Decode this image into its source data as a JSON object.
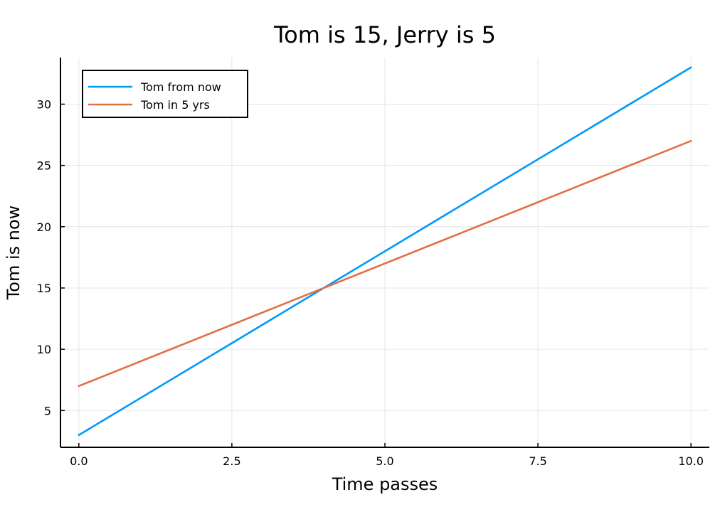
{
  "chart_data": {
    "type": "line",
    "title": "Tom is 15, Jerry is 5",
    "xlabel": "Time passes",
    "ylabel": "Tom is now",
    "xlim": [
      -0.3,
      10.3
    ],
    "ylim": [
      2.0,
      33.8
    ],
    "xticks": [
      0,
      2.5,
      5,
      7.5,
      10
    ],
    "xtick_labels": [
      "0.0",
      "2.5",
      "5.0",
      "7.5",
      "10.0"
    ],
    "yticks": [
      5,
      10,
      15,
      20,
      25,
      30
    ],
    "ytick_labels": [
      "5",
      "10",
      "15",
      "20",
      "25",
      "30"
    ],
    "grid": true,
    "legend_position": "top-left",
    "series": [
      {
        "name": "Tom from now",
        "color": "#009AFA",
        "x": [
          0,
          10
        ],
        "y": [
          3,
          33
        ]
      },
      {
        "name": "Tom in 5 yrs",
        "color": "#E26F46",
        "x": [
          0,
          10
        ],
        "y": [
          7,
          27
        ]
      }
    ]
  }
}
